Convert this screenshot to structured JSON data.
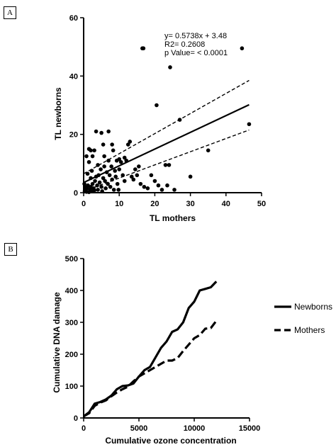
{
  "panels": {
    "a_label": "A",
    "b_label": "B"
  },
  "chart_data": [
    {
      "type": "scatter",
      "panel": "A",
      "xlabel": "TL  mothers",
      "ylabel": "TL newborns",
      "xlim": [
        0,
        50
      ],
      "ylim": [
        0,
        60
      ],
      "xticks": [
        0,
        10,
        20,
        30,
        40,
        50
      ],
      "yticks": [
        0,
        20,
        40,
        60
      ],
      "annotations": [
        "y= 0.5738x + 3.48",
        "R2= 0.2608",
        "p Value= < 0.0001"
      ],
      "regression": {
        "slope": 0.5738,
        "intercept": 3.48,
        "x_range": [
          0,
          46.5
        ]
      },
      "ci_upper": [
        [
          0,
          6.5
        ],
        [
          46.5,
          38.5
        ]
      ],
      "ci_lower": [
        [
          0,
          0.5
        ],
        [
          46.5,
          21.5
        ]
      ],
      "points": [
        [
          0.3,
          0.5
        ],
        [
          0.5,
          1.0
        ],
        [
          0.8,
          0.3
        ],
        [
          1.0,
          1.5
        ],
        [
          1.2,
          2.5
        ],
        [
          0.4,
          2.0
        ],
        [
          1.5,
          0.2
        ],
        [
          0.2,
          3.0
        ],
        [
          1.8,
          1.0
        ],
        [
          2.0,
          2.0
        ],
        [
          2.2,
          0.5
        ],
        [
          2.5,
          3.0
        ],
        [
          2.8,
          1.5
        ],
        [
          3.0,
          0.8
        ],
        [
          1.1,
          6.5
        ],
        [
          2.0,
          5.0
        ],
        [
          2.3,
          7.5
        ],
        [
          3.2,
          4.0
        ],
        [
          3.5,
          5.5
        ],
        [
          3.8,
          2.5
        ],
        [
          4.0,
          1.0
        ],
        [
          4.2,
          6.0
        ],
        [
          4.5,
          3.5
        ],
        [
          4.8,
          8.0
        ],
        [
          5.0,
          2.0
        ],
        [
          5.2,
          0.5
        ],
        [
          5.5,
          5.0
        ],
        [
          5.8,
          9.0
        ],
        [
          6.0,
          4.0
        ],
        [
          6.2,
          1.5
        ],
        [
          6.5,
          7.0
        ],
        [
          6.8,
          3.0
        ],
        [
          7.0,
          11.0
        ],
        [
          7.3,
          6.0
        ],
        [
          7.5,
          2.0
        ],
        [
          7.8,
          9.0
        ],
        [
          8.0,
          4.5
        ],
        [
          8.3,
          14.5
        ],
        [
          8.5,
          1.0
        ],
        [
          8.8,
          7.5
        ],
        [
          9.0,
          5.5
        ],
        [
          9.3,
          11.0
        ],
        [
          9.5,
          3.0
        ],
        [
          9.8,
          1.0
        ],
        [
          10.0,
          8.0
        ],
        [
          10.5,
          10.5
        ],
        [
          11.0,
          6.0
        ],
        [
          11.5,
          4.0
        ],
        [
          12.0,
          11.0
        ],
        [
          12.5,
          16.5
        ],
        [
          13.0,
          17.5
        ],
        [
          13.5,
          5.5
        ],
        [
          14.0,
          4.5
        ],
        [
          14.5,
          8.0
        ],
        [
          15.0,
          6.0
        ],
        [
          15.5,
          9.0
        ],
        [
          16.0,
          3.0
        ],
        [
          17.0,
          2.0
        ],
        [
          18.0,
          1.5
        ],
        [
          19.0,
          6.0
        ],
        [
          20.0,
          4.0
        ],
        [
          21.0,
          2.5
        ],
        [
          22.0,
          1.0
        ],
        [
          23.0,
          9.5
        ],
        [
          23.5,
          2.5
        ],
        [
          24.0,
          9.5
        ],
        [
          25.5,
          1.0
        ],
        [
          1.5,
          10.5
        ],
        [
          2.5,
          12.5
        ],
        [
          3.0,
          14.5
        ],
        [
          5.8,
          12.5
        ],
        [
          5.5,
          16.5
        ],
        [
          5.0,
          20.5
        ],
        [
          3.5,
          21.0
        ],
        [
          7.0,
          21.0
        ],
        [
          8.0,
          16.5
        ],
        [
          1.5,
          15.0
        ],
        [
          0.8,
          12.5
        ],
        [
          2.0,
          14.5
        ],
        [
          4.0,
          9.5
        ],
        [
          10.0,
          11.5
        ],
        [
          11.5,
          12.0
        ],
        [
          16.5,
          49.5
        ],
        [
          16.8,
          49.5
        ],
        [
          24.3,
          43.0
        ],
        [
          20.5,
          30.0
        ],
        [
          27.0,
          25.0
        ],
        [
          30.0,
          5.5
        ],
        [
          35.0,
          14.5
        ],
        [
          44.5,
          49.5
        ],
        [
          46.5,
          23.5
        ]
      ]
    },
    {
      "type": "line",
      "panel": "B",
      "xlabel": "Cumulative ozone concentration",
      "ylabel": "Cumulative DNA damage",
      "xlim": [
        0,
        15000
      ],
      "ylim": [
        0,
        500
      ],
      "xticks": [
        0,
        5000,
        10000,
        15000
      ],
      "yticks": [
        0,
        100,
        200,
        300,
        400,
        500
      ],
      "legend_position": "right",
      "series": [
        {
          "name": "Newborns",
          "style": "solid",
          "points": [
            [
              0,
              5
            ],
            [
              500,
              18
            ],
            [
              1000,
              45
            ],
            [
              1500,
              50
            ],
            [
              2000,
              58
            ],
            [
              2500,
              70
            ],
            [
              3000,
              90
            ],
            [
              3500,
              100
            ],
            [
              4000,
              102
            ],
            [
              4500,
              108
            ],
            [
              5000,
              130
            ],
            [
              5500,
              150
            ],
            [
              6000,
              160
            ],
            [
              6500,
              190
            ],
            [
              7000,
              220
            ],
            [
              7500,
              240
            ],
            [
              8000,
              270
            ],
            [
              8500,
              278
            ],
            [
              9000,
              300
            ],
            [
              9500,
              345
            ],
            [
              10000,
              365
            ],
            [
              10500,
              400
            ],
            [
              11000,
              405
            ],
            [
              11500,
              410
            ],
            [
              12000,
              428
            ]
          ]
        },
        {
          "name": "Mothers",
          "style": "dashed",
          "points": [
            [
              0,
              5
            ],
            [
              500,
              15
            ],
            [
              1000,
              38
            ],
            [
              1500,
              48
            ],
            [
              2000,
              55
            ],
            [
              2500,
              68
            ],
            [
              3000,
              80
            ],
            [
              3500,
              90
            ],
            [
              4000,
              98
            ],
            [
              4500,
              115
            ],
            [
              5000,
              130
            ],
            [
              5500,
              140
            ],
            [
              6000,
              150
            ],
            [
              6500,
              160
            ],
            [
              7000,
              170
            ],
            [
              7500,
              180
            ],
            [
              8000,
              180
            ],
            [
              8500,
              188
            ],
            [
              9000,
              210
            ],
            [
              9500,
              230
            ],
            [
              10000,
              250
            ],
            [
              10500,
              260
            ],
            [
              11000,
              280
            ],
            [
              11500,
              282
            ],
            [
              12000,
              305
            ]
          ]
        }
      ]
    }
  ]
}
